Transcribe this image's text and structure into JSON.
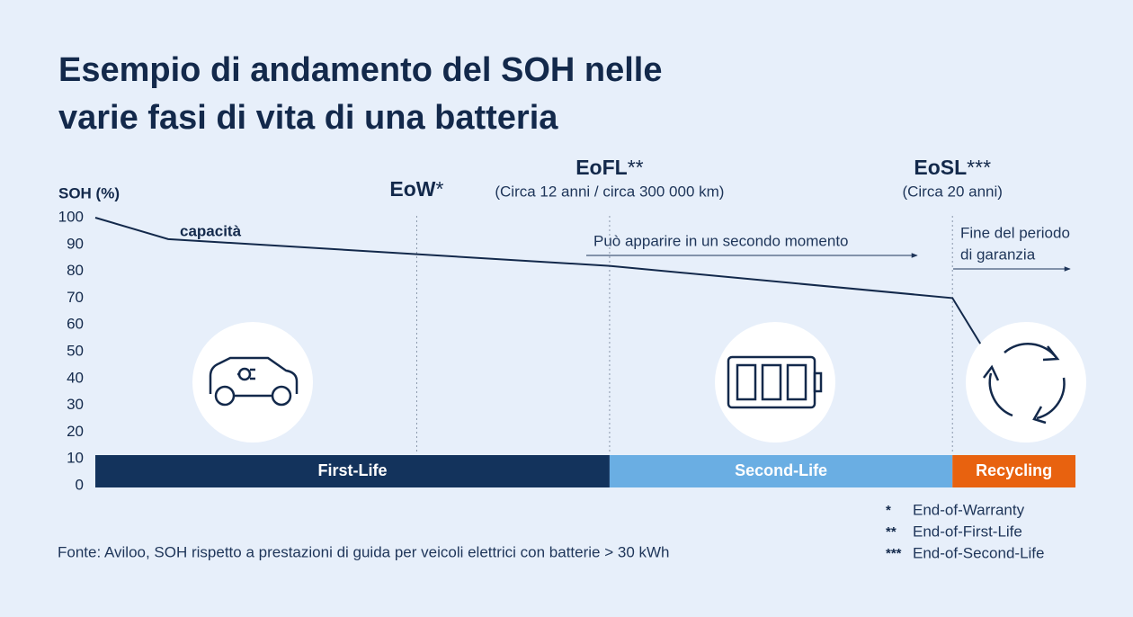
{
  "chart_data": {
    "type": "line",
    "title": [
      "Esempio di andamento del SOH nelle",
      "varie fasi di vita di una batteria"
    ],
    "y_label": "SOH (%)",
    "x": [
      0,
      1.7,
      12,
      20,
      20.65
    ],
    "xlim": [
      0,
      22.87
    ],
    "ylim": [
      0,
      100
    ],
    "yticks": [
      0,
      10,
      20,
      30,
      40,
      50,
      60,
      70,
      80,
      90,
      100
    ],
    "series": [
      {
        "name": "capacità",
        "color": "#13294b",
        "values": [
          100,
          92,
          82,
          70,
          53
        ]
      }
    ],
    "markers": [
      {
        "label": "EoW",
        "note": "*",
        "x": 7.5
      },
      {
        "label": "EoFL",
        "note": "**",
        "detail": "(Circa 12 anni / circa 300 000 km)",
        "x": 12
      },
      {
        "label": "EoSL",
        "note": "***",
        "detail": "(Circa 20 anni)",
        "x": 20
      }
    ],
    "annotations": [
      {
        "lines": [
          "Può apparire in un secondo momento"
        ]
      },
      {
        "lines": [
          "Fine del periodo",
          "di garanzia"
        ]
      }
    ],
    "phases": [
      {
        "name": "First-Life",
        "start": 0,
        "end": 12,
        "color": "#13335c"
      },
      {
        "name": "Second-Life",
        "start": 12,
        "end": 20,
        "color": "#6aaee3"
      },
      {
        "name": "Recycling",
        "start": 20,
        "end": 22.87,
        "color": "#e8620f"
      }
    ],
    "footnotes": [
      {
        "symbol": "*",
        "text": "End-of-Warranty"
      },
      {
        "symbol": "**",
        "text": "End-of-First-Life"
      },
      {
        "symbol": "***",
        "text": "End-of-Second-Life"
      }
    ],
    "source": "Fonte: Aviloo, SOH rispetto a prestazioni di guida per veicoli elettrici con batterie > 30 kWh"
  }
}
